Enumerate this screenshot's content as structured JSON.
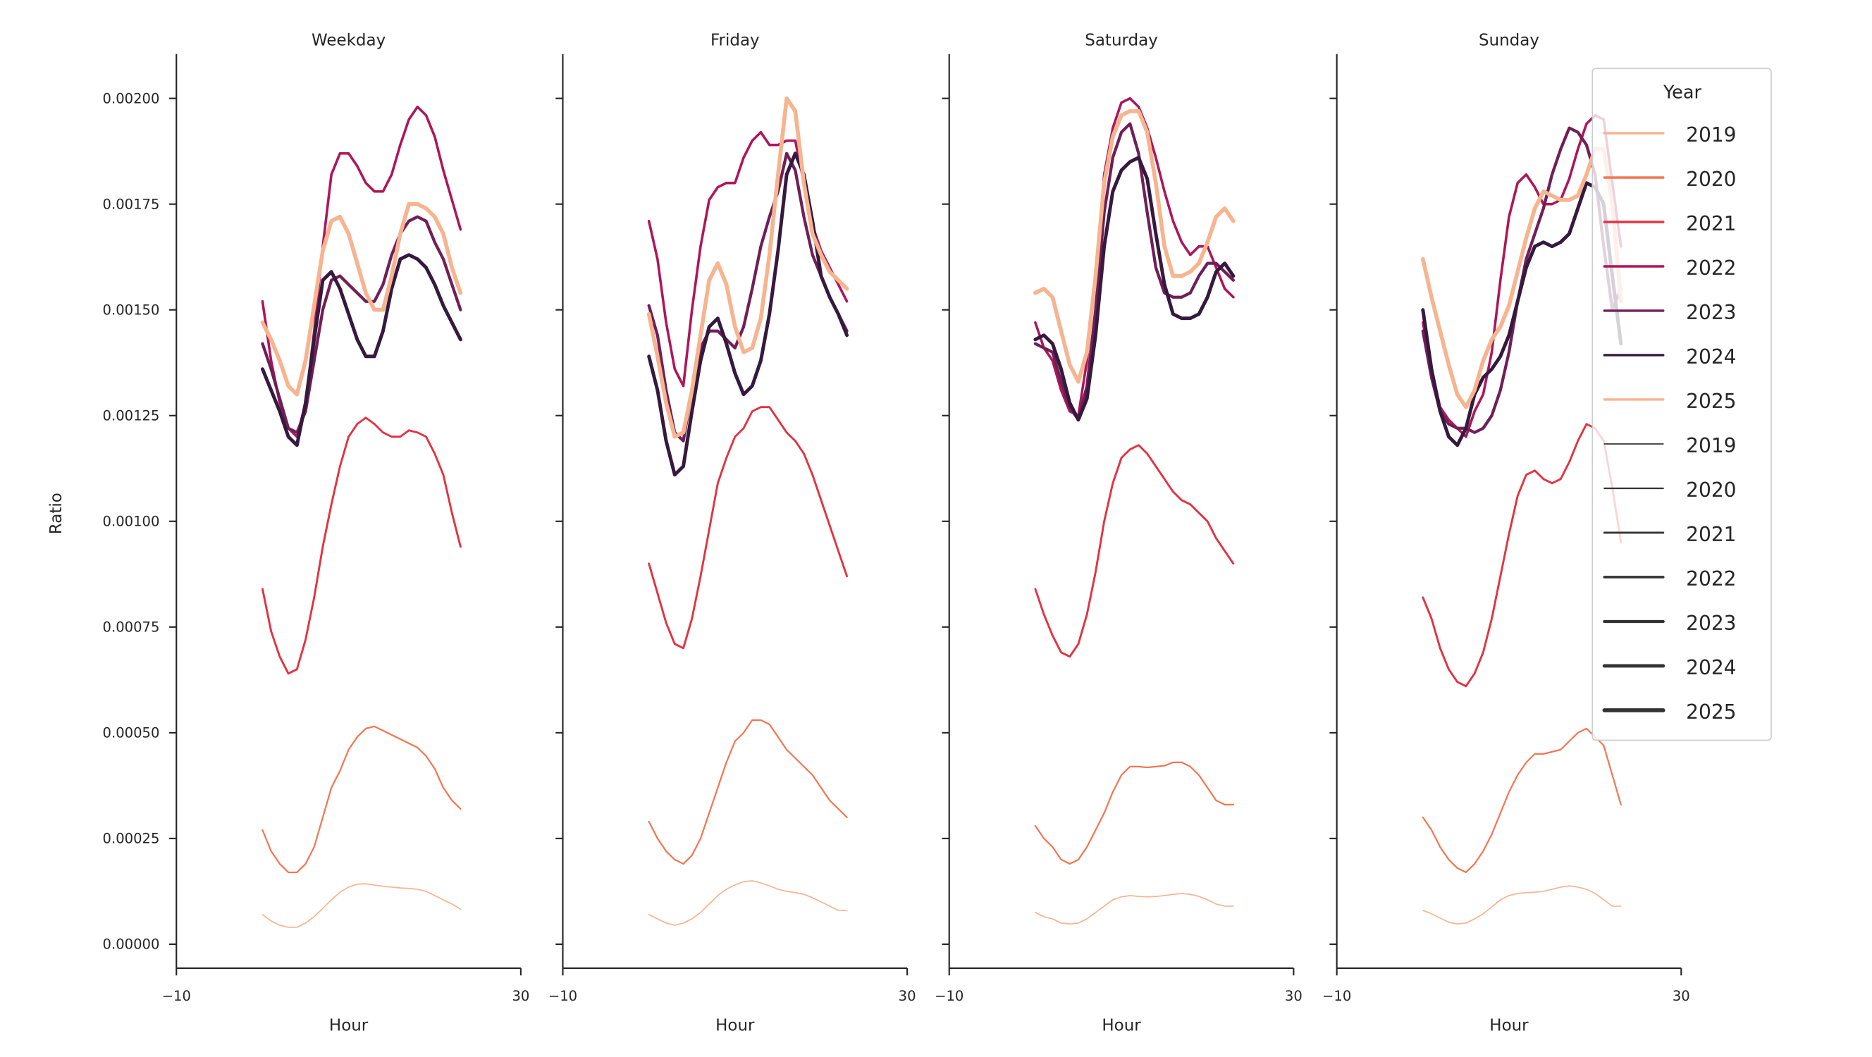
{
  "chart_data": [
    {
      "type": "line",
      "title": "Weekday",
      "xlabel": "Hour",
      "ylabel": "Ratio",
      "xlim": [
        -10,
        30
      ],
      "ylim": [
        0,
        0.0021
      ],
      "x_ticks": [
        "−10",
        "30"
      ],
      "y_ticks": [
        "0.00000",
        "0.00025",
        "0.00050",
        "0.00075",
        "0.00100",
        "0.00125",
        "0.00150",
        "0.00175",
        "0.00200"
      ],
      "x": [
        0,
        1,
        2,
        3,
        4,
        5,
        6,
        7,
        8,
        9,
        10,
        11,
        12,
        13,
        14,
        15,
        16,
        17,
        18,
        19,
        20,
        21,
        22,
        23
      ],
      "series": [
        {
          "name": "2019",
          "values": [
            7e-05,
            5.5e-05,
            4.5e-05,
            4e-05,
            4e-05,
            5e-05,
            6.5e-05,
            8.5e-05,
            0.000105,
            0.000123,
            0.000135,
            0.000142,
            0.000143,
            0.00014,
            0.000137,
            0.000135,
            0.000133,
            0.000132,
            0.00013,
            0.000125,
            0.000115,
            0.000105,
            9.5e-05,
            8.3e-05
          ]
        },
        {
          "name": "2020",
          "values": [
            0.00027,
            0.00022,
            0.00019,
            0.00017,
            0.00017,
            0.00019,
            0.00023,
            0.0003,
            0.00037,
            0.00041,
            0.00046,
            0.00049,
            0.00051,
            0.000515,
            0.000505,
            0.000495,
            0.000485,
            0.000475,
            0.000465,
            0.000445,
            0.000415,
            0.00037,
            0.00034,
            0.00032
          ]
        },
        {
          "name": "2021",
          "values": [
            0.00084,
            0.00074,
            0.00068,
            0.00064,
            0.00065,
            0.00072,
            0.00082,
            0.00094,
            0.00104,
            0.00113,
            0.0012,
            0.00123,
            0.001245,
            0.00123,
            0.00121,
            0.0012,
            0.0012,
            0.001215,
            0.00121,
            0.0012,
            0.00116,
            0.00111,
            0.00102,
            0.00094
          ]
        },
        {
          "name": "2022",
          "values": [
            0.00152,
            0.00138,
            0.00128,
            0.00122,
            0.0012,
            0.00128,
            0.00145,
            0.00165,
            0.00182,
            0.00187,
            0.00187,
            0.00184,
            0.0018,
            0.00178,
            0.00178,
            0.00182,
            0.00189,
            0.00195,
            0.00198,
            0.00196,
            0.00191,
            0.00183,
            0.00176,
            0.00169
          ]
        },
        {
          "name": "2023",
          "values": [
            0.00142,
            0.00136,
            0.00129,
            0.00122,
            0.00121,
            0.00126,
            0.00138,
            0.0015,
            0.00157,
            0.00158,
            0.00156,
            0.00154,
            0.00152,
            0.00152,
            0.00156,
            0.00163,
            0.00168,
            0.00171,
            0.00172,
            0.00171,
            0.00166,
            0.00162,
            0.00156,
            0.0015
          ]
        },
        {
          "name": "2024",
          "values": [
            0.00136,
            0.00131,
            0.00126,
            0.0012,
            0.00118,
            0.00128,
            0.00143,
            0.00157,
            0.00159,
            0.00155,
            0.00149,
            0.00143,
            0.00139,
            0.00139,
            0.00145,
            0.00155,
            0.00162,
            0.00163,
            0.00162,
            0.0016,
            0.00156,
            0.00151,
            0.00147,
            0.00143
          ]
        },
        {
          "name": "2025",
          "values": [
            0.00147,
            0.00143,
            0.00138,
            0.00132,
            0.0013,
            0.00138,
            0.00151,
            0.00164,
            0.00171,
            0.00172,
            0.00168,
            0.00161,
            0.00154,
            0.0015,
            0.0015,
            0.00158,
            0.00168,
            0.00175,
            0.00175,
            0.00174,
            0.00172,
            0.00168,
            0.0016,
            0.00154
          ]
        }
      ]
    },
    {
      "type": "line",
      "title": "Friday",
      "xlabel": "Hour",
      "xlim": [
        -10,
        30
      ],
      "ylim": [
        0,
        0.0021
      ],
      "x_ticks": [
        "−10",
        "30"
      ],
      "x": [
        0,
        1,
        2,
        3,
        4,
        5,
        6,
        7,
        8,
        9,
        10,
        11,
        12,
        13,
        14,
        15,
        16,
        17,
        18,
        19,
        20,
        21,
        22,
        23
      ],
      "series": [
        {
          "name": "2019",
          "values": [
            7e-05,
            6e-05,
            5e-05,
            4.5e-05,
            5e-05,
            6e-05,
            7.5e-05,
            9.5e-05,
            0.000115,
            0.00013,
            0.00014,
            0.000148,
            0.00015,
            0.000145,
            0.000138,
            0.00013,
            0.000125,
            0.000122,
            0.000118,
            0.00011,
            0.0001,
            9e-05,
            8e-05,
            8e-05
          ]
        },
        {
          "name": "2020",
          "values": [
            0.00029,
            0.00025,
            0.00022,
            0.0002,
            0.00019,
            0.00021,
            0.00025,
            0.00031,
            0.00037,
            0.00043,
            0.00048,
            0.0005,
            0.00053,
            0.00053,
            0.00052,
            0.00049,
            0.00046,
            0.00044,
            0.00042,
            0.0004,
            0.00037,
            0.00034,
            0.00032,
            0.0003
          ]
        },
        {
          "name": "2021",
          "values": [
            0.0009,
            0.00083,
            0.00076,
            0.00071,
            0.0007,
            0.00077,
            0.00087,
            0.00098,
            0.00109,
            0.00115,
            0.0012,
            0.00122,
            0.00126,
            0.00127,
            0.00127,
            0.00124,
            0.00121,
            0.00119,
            0.00116,
            0.00111,
            0.00105,
            0.00099,
            0.00093,
            0.00087
          ]
        },
        {
          "name": "2022",
          "values": [
            0.00171,
            0.00162,
            0.00147,
            0.00136,
            0.00132,
            0.0015,
            0.00165,
            0.00176,
            0.00179,
            0.0018,
            0.0018,
            0.00186,
            0.0019,
            0.00192,
            0.00189,
            0.00189,
            0.0019,
            0.0019,
            0.0018,
            0.0017,
            0.00164,
            0.0016,
            0.00156,
            0.00152
          ]
        },
        {
          "name": "2023",
          "values": [
            0.00151,
            0.00144,
            0.00131,
            0.00121,
            0.00119,
            0.00131,
            0.00141,
            0.00145,
            0.00145,
            0.00143,
            0.00141,
            0.00146,
            0.00155,
            0.00165,
            0.00172,
            0.00178,
            0.00187,
            0.00183,
            0.00172,
            0.00163,
            0.00158,
            0.00153,
            0.00149,
            0.00145
          ]
        },
        {
          "name": "2024",
          "values": [
            0.00139,
            0.00131,
            0.00119,
            0.00111,
            0.00113,
            0.00126,
            0.00138,
            0.00146,
            0.00148,
            0.00142,
            0.00135,
            0.0013,
            0.00132,
            0.00138,
            0.00149,
            0.00164,
            0.00182,
            0.00187,
            0.00182,
            0.00171,
            0.00158,
            0.00153,
            0.00149,
            0.00144
          ]
        },
        {
          "name": "2025",
          "values": [
            0.00149,
            0.00139,
            0.00128,
            0.0012,
            0.00121,
            0.00131,
            0.00144,
            0.00157,
            0.00161,
            0.00156,
            0.00146,
            0.0014,
            0.00141,
            0.00148,
            0.00163,
            0.00182,
            0.002,
            0.00197,
            0.0018,
            0.00168,
            0.00163,
            0.00159,
            0.00157,
            0.00155
          ]
        }
      ]
    },
    {
      "type": "line",
      "title": "Saturday",
      "xlabel": "Hour",
      "xlim": [
        -10,
        30
      ],
      "ylim": [
        0,
        0.0021
      ],
      "x_ticks": [
        "−10",
        "30"
      ],
      "x": [
        0,
        1,
        2,
        3,
        4,
        5,
        6,
        7,
        8,
        9,
        10,
        11,
        12,
        13,
        14,
        15,
        16,
        17,
        18,
        19,
        20,
        21,
        22,
        23
      ],
      "series": [
        {
          "name": "2019",
          "values": [
            7.5e-05,
            6.5e-05,
            6e-05,
            5e-05,
            4.8e-05,
            5e-05,
            6e-05,
            7.5e-05,
            9e-05,
            0.000105,
            0.000112,
            0.000115,
            0.000113,
            0.000112,
            0.000113,
            0.000115,
            0.000118,
            0.00012,
            0.000118,
            0.000113,
            0.000105,
            9.5e-05,
            9e-05,
            9e-05
          ]
        },
        {
          "name": "2020",
          "values": [
            0.00028,
            0.00025,
            0.00023,
            0.0002,
            0.00019,
            0.0002,
            0.00023,
            0.00027,
            0.00031,
            0.00036,
            0.0004,
            0.00042,
            0.00042,
            0.000418,
            0.00042,
            0.000422,
            0.00043,
            0.00043,
            0.00042,
            0.0004,
            0.00037,
            0.00034,
            0.00033,
            0.00033
          ]
        },
        {
          "name": "2021",
          "values": [
            0.00084,
            0.00078,
            0.00073,
            0.00069,
            0.00068,
            0.00071,
            0.00078,
            0.00088,
            0.001,
            0.00109,
            0.00115,
            0.00117,
            0.00118,
            0.00116,
            0.00113,
            0.0011,
            0.00107,
            0.00105,
            0.00104,
            0.00102,
            0.001,
            0.00096,
            0.00093,
            0.0009
          ]
        },
        {
          "name": "2022",
          "values": [
            0.00147,
            0.00141,
            0.00138,
            0.00131,
            0.00126,
            0.00125,
            0.00138,
            0.00158,
            0.00182,
            0.00193,
            0.00199,
            0.002,
            0.00198,
            0.00193,
            0.00186,
            0.00178,
            0.00171,
            0.00166,
            0.00163,
            0.00165,
            0.00165,
            0.0016,
            0.00155,
            0.00153
          ]
        },
        {
          "name": "2023",
          "values": [
            0.00142,
            0.00141,
            0.0014,
            0.00133,
            0.00127,
            0.00124,
            0.00132,
            0.0015,
            0.00173,
            0.00186,
            0.00192,
            0.00194,
            0.00187,
            0.00173,
            0.0016,
            0.00154,
            0.00153,
            0.00153,
            0.00154,
            0.00158,
            0.00161,
            0.00161,
            0.00159,
            0.00157
          ]
        },
        {
          "name": "2024",
          "values": [
            0.00143,
            0.00144,
            0.00142,
            0.00136,
            0.00128,
            0.00124,
            0.00129,
            0.00144,
            0.00165,
            0.00178,
            0.00183,
            0.00185,
            0.00186,
            0.00181,
            0.00168,
            0.00156,
            0.00149,
            0.00148,
            0.00148,
            0.00149,
            0.00153,
            0.00159,
            0.00161,
            0.00158
          ]
        },
        {
          "name": "2025",
          "values": [
            0.00154,
            0.00155,
            0.00153,
            0.00145,
            0.00137,
            0.00133,
            0.0014,
            0.00158,
            0.0018,
            0.00191,
            0.00196,
            0.00197,
            0.00197,
            0.00192,
            0.0018,
            0.00165,
            0.00158,
            0.00158,
            0.00159,
            0.00161,
            0.00166,
            0.00172,
            0.00174,
            0.00171
          ]
        }
      ]
    },
    {
      "type": "line",
      "title": "Sunday",
      "xlabel": "Hour",
      "xlim": [
        -10,
        30
      ],
      "ylim": [
        0,
        0.0021
      ],
      "x_ticks": [
        "−10",
        "30"
      ],
      "x": [
        0,
        1,
        2,
        3,
        4,
        5,
        6,
        7,
        8,
        9,
        10,
        11,
        12,
        13,
        14,
        15,
        16,
        17,
        18,
        19,
        20,
        21,
        22,
        23
      ],
      "series": [
        {
          "name": "2019",
          "values": [
            8e-05,
            7.2e-05,
            6.2e-05,
            5.2e-05,
            4.8e-05,
            5e-05,
            6e-05,
            7.2e-05,
            8.8e-05,
            0.000105,
            0.000115,
            0.00012,
            0.000122,
            0.000123,
            0.000125,
            0.00013,
            0.000135,
            0.000138,
            0.000135,
            0.00013,
            0.00012,
            0.000105,
            9e-05,
            9e-05
          ]
        },
        {
          "name": "2020",
          "values": [
            0.0003,
            0.00027,
            0.00023,
            0.0002,
            0.00018,
            0.00017,
            0.00019,
            0.00022,
            0.00026,
            0.00031,
            0.00036,
            0.0004,
            0.00043,
            0.00045,
            0.00045,
            0.000455,
            0.00046,
            0.00048,
            0.0005,
            0.00051,
            0.00049,
            0.00047,
            0.0004,
            0.00033
          ]
        },
        {
          "name": "2021",
          "values": [
            0.00082,
            0.00077,
            0.0007,
            0.00065,
            0.00062,
            0.00061,
            0.00064,
            0.00069,
            0.00077,
            0.00087,
            0.00097,
            0.00106,
            0.00111,
            0.00112,
            0.0011,
            0.00109,
            0.0011,
            0.00114,
            0.00119,
            0.00123,
            0.00122,
            0.00119,
            0.00108,
            0.00095
          ]
        },
        {
          "name": "2022",
          "values": [
            0.00147,
            0.00136,
            0.00127,
            0.00124,
            0.00122,
            0.0012,
            0.00126,
            0.0013,
            0.0014,
            0.00157,
            0.00172,
            0.0018,
            0.00182,
            0.00179,
            0.00175,
            0.00175,
            0.00176,
            0.00181,
            0.00188,
            0.00194,
            0.00196,
            0.00195,
            0.0018,
            0.00165
          ]
        },
        {
          "name": "2023",
          "values": [
            0.00145,
            0.00134,
            0.00126,
            0.00123,
            0.00122,
            0.00122,
            0.00121,
            0.00122,
            0.00125,
            0.00131,
            0.0014,
            0.00152,
            0.00162,
            0.00168,
            0.00174,
            0.00182,
            0.00188,
            0.00193,
            0.00192,
            0.00189,
            0.00182,
            0.00165,
            0.0015,
            0.00155
          ]
        },
        {
          "name": "2024",
          "values": [
            0.0015,
            0.00136,
            0.00126,
            0.0012,
            0.00118,
            0.00122,
            0.0013,
            0.00134,
            0.00136,
            0.00139,
            0.00144,
            0.00152,
            0.0016,
            0.00165,
            0.00166,
            0.00165,
            0.00166,
            0.00168,
            0.00174,
            0.0018,
            0.00179,
            0.00175,
            0.00158,
            0.00142
          ]
        },
        {
          "name": "2025",
          "values": [
            0.00162,
            0.00153,
            0.00145,
            0.00137,
            0.0013,
            0.00127,
            0.00131,
            0.00138,
            0.00143,
            0.00146,
            0.00151,
            0.00159,
            0.00167,
            0.00174,
            0.00178,
            0.00177,
            0.00176,
            0.00176,
            0.00177,
            0.00182,
            0.00188,
            0.00188,
            0.00175,
            0.00152
          ]
        }
      ]
    }
  ],
  "legend": {
    "title": "Year",
    "placement": "top-right",
    "hue_entries": [
      "2019",
      "2020",
      "2021",
      "2022",
      "2023",
      "2024",
      "2025"
    ],
    "size_entries": [
      "2019",
      "2020",
      "2021",
      "2022",
      "2023",
      "2024",
      "2025"
    ]
  },
  "colors": {
    "2019": "#f6b48f",
    "2020": "#f37651",
    "2021": "#e13342",
    "2022": "#ad1759",
    "2023": "#701f57",
    "2024": "#35193e",
    "2025": "#f6b48f",
    "axis": "#262626"
  }
}
